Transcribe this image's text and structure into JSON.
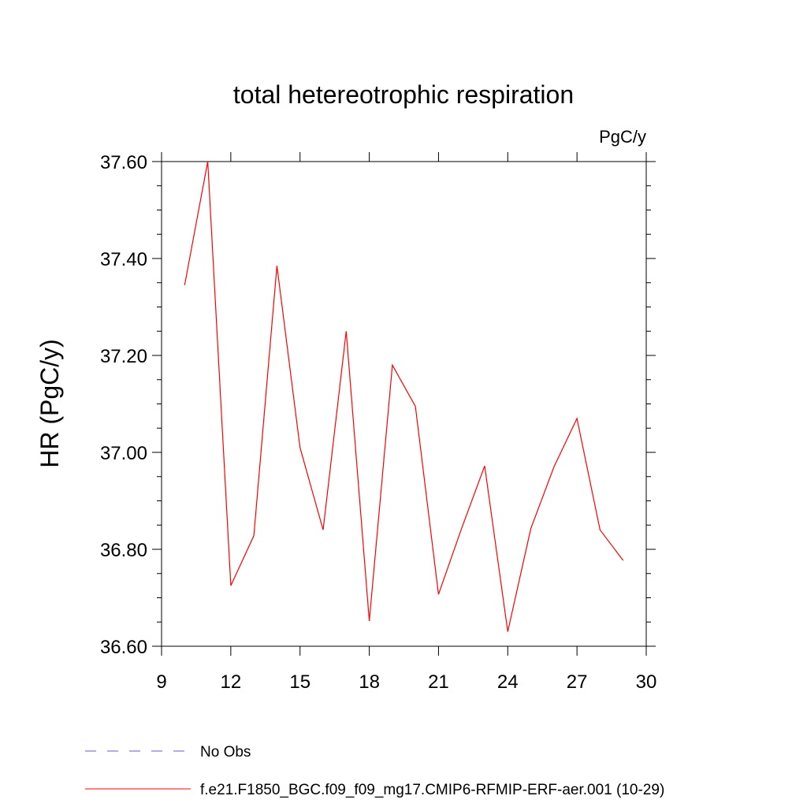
{
  "chart_data": {
    "type": "line",
    "title": "total hetereotrophic respiration",
    "units_label": "PgC/y",
    "ylabel": "HR  (PgC/y)",
    "xlabel": "",
    "xlim": [
      9,
      30
    ],
    "ylim": [
      36.6,
      37.6
    ],
    "xticks": [
      9,
      12,
      15,
      18,
      21,
      24,
      27,
      30
    ],
    "xtick_labels": [
      "9",
      "12",
      "15",
      "18",
      "21",
      "24",
      "27",
      "30"
    ],
    "yticks": [
      36.6,
      36.8,
      37.0,
      37.2,
      37.4,
      37.6
    ],
    "ytick_labels": [
      "36.60",
      "36.80",
      "37.00",
      "37.20",
      "37.40",
      "37.60"
    ],
    "series": [
      {
        "name": "f.e21.F1850_BGC.f09_f09_mg17.CMIP6-RFMIP-ERF-aer.001 (10-29)",
        "color": "#ff0000",
        "dash": "solid",
        "x": [
          10,
          11,
          12,
          13,
          14,
          15,
          16,
          17,
          18,
          19,
          20,
          21,
          22,
          23,
          24,
          25,
          26,
          27,
          28,
          29
        ],
        "y": [
          37.345,
          37.6,
          36.725,
          36.828,
          37.385,
          37.01,
          36.84,
          37.25,
          36.652,
          37.18,
          37.095,
          36.707,
          36.843,
          36.972,
          36.63,
          36.843,
          36.97,
          37.07,
          36.84,
          36.777
        ]
      }
    ],
    "legend": [
      {
        "label": "No Obs",
        "color": "#6a5acd",
        "dash": "dashed"
      },
      {
        "label": "f.e21.F1850_BGC.f09_f09_mg17.CMIP6-RFMIP-ERF-aer.001 (10-29)",
        "color": "#ff0000",
        "dash": "solid"
      }
    ]
  }
}
